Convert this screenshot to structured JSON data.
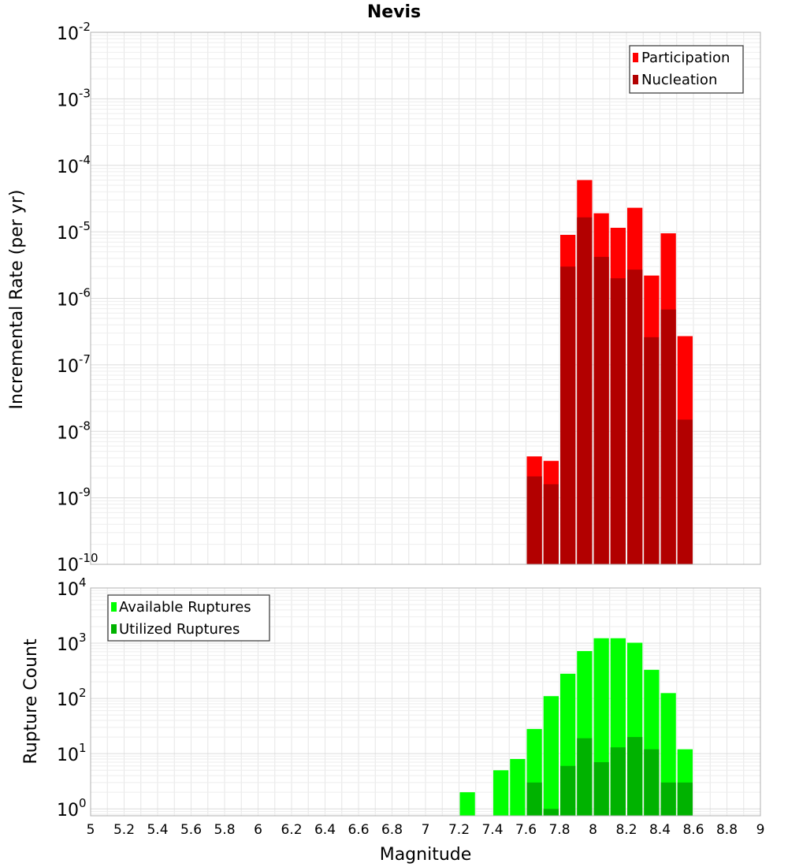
{
  "chart_data": [
    {
      "type": "bar",
      "title": "Nevis",
      "xlabel": "",
      "ylabel": "Incremental Rate (per yr)",
      "yscale": "log",
      "xlim": [
        5,
        9
      ],
      "ylim": [
        1e-10,
        0.01
      ],
      "y_ticks": [
        {
          "base": "10",
          "exp": "-2",
          "value": 0.01
        },
        {
          "base": "10",
          "exp": "-3",
          "value": 0.001
        },
        {
          "base": "10",
          "exp": "-4",
          "value": 0.0001
        },
        {
          "base": "10",
          "exp": "-5",
          "value": 1e-05
        },
        {
          "base": "10",
          "exp": "-6",
          "value": 1e-06
        },
        {
          "base": "10",
          "exp": "-7",
          "value": 1e-07
        },
        {
          "base": "10",
          "exp": "-8",
          "value": 1e-08
        },
        {
          "base": "10",
          "exp": "-9",
          "value": 1e-09
        },
        {
          "base": "10",
          "exp": "-10",
          "value": 1e-10
        }
      ],
      "grid": true,
      "legend_position": "top-right",
      "x": [
        7.65,
        7.75,
        7.85,
        7.95,
        8.05,
        8.15,
        8.25,
        8.35,
        8.45,
        8.55
      ],
      "series": [
        {
          "name": "Participation",
          "color": "#ff0000",
          "values": [
            4.2e-09,
            3.6e-09,
            9e-06,
            6e-05,
            1.9e-05,
            1.15e-05,
            2.3e-05,
            2.2e-06,
            9.5e-06,
            2.7e-07
          ]
        },
        {
          "name": "Nucleation",
          "color": "#b20000",
          "values": [
            2.1e-09,
            1.6e-09,
            3e-06,
            1.65e-05,
            4.2e-06,
            2e-06,
            2.7e-06,
            2.6e-07,
            6.8e-07,
            1.5e-08
          ]
        }
      ]
    },
    {
      "type": "bar",
      "title": "",
      "xlabel": "Magnitude",
      "ylabel": "Rupture Count",
      "yscale": "log",
      "xlim": [
        5,
        9
      ],
      "ylim": [
        0.75,
        10000
      ],
      "x_ticks": [
        "5",
        "5.2",
        "5.4",
        "5.6",
        "5.8",
        "6",
        "6.2",
        "6.4",
        "6.6",
        "6.8",
        "7",
        "7.2",
        "7.4",
        "7.6",
        "7.8",
        "8",
        "8.2",
        "8.4",
        "8.6",
        "8.8",
        "9"
      ],
      "y_ticks": [
        {
          "base": "10",
          "exp": "4",
          "value": 10000
        },
        {
          "base": "10",
          "exp": "3",
          "value": 1000
        },
        {
          "base": "10",
          "exp": "2",
          "value": 100
        },
        {
          "base": "10",
          "exp": "1",
          "value": 10
        },
        {
          "base": "10",
          "exp": "0",
          "value": 1
        }
      ],
      "grid": true,
      "legend_position": "top-left",
      "x": [
        7.25,
        7.35,
        7.45,
        7.55,
        7.65,
        7.75,
        7.85,
        7.95,
        8.05,
        8.15,
        8.25,
        8.35,
        8.45,
        8.55
      ],
      "series": [
        {
          "name": "Available Ruptures",
          "color": "#00ff00",
          "values": [
            2,
            0,
            5,
            8,
            28,
            110,
            280,
            720,
            1230,
            1230,
            1020,
            330,
            125,
            12
          ]
        },
        {
          "name": "Utilized Ruptures",
          "color": "#00b200",
          "values": [
            0,
            0,
            0,
            0,
            3,
            1,
            6,
            19,
            7,
            13,
            20,
            12,
            3,
            3
          ]
        }
      ]
    }
  ]
}
